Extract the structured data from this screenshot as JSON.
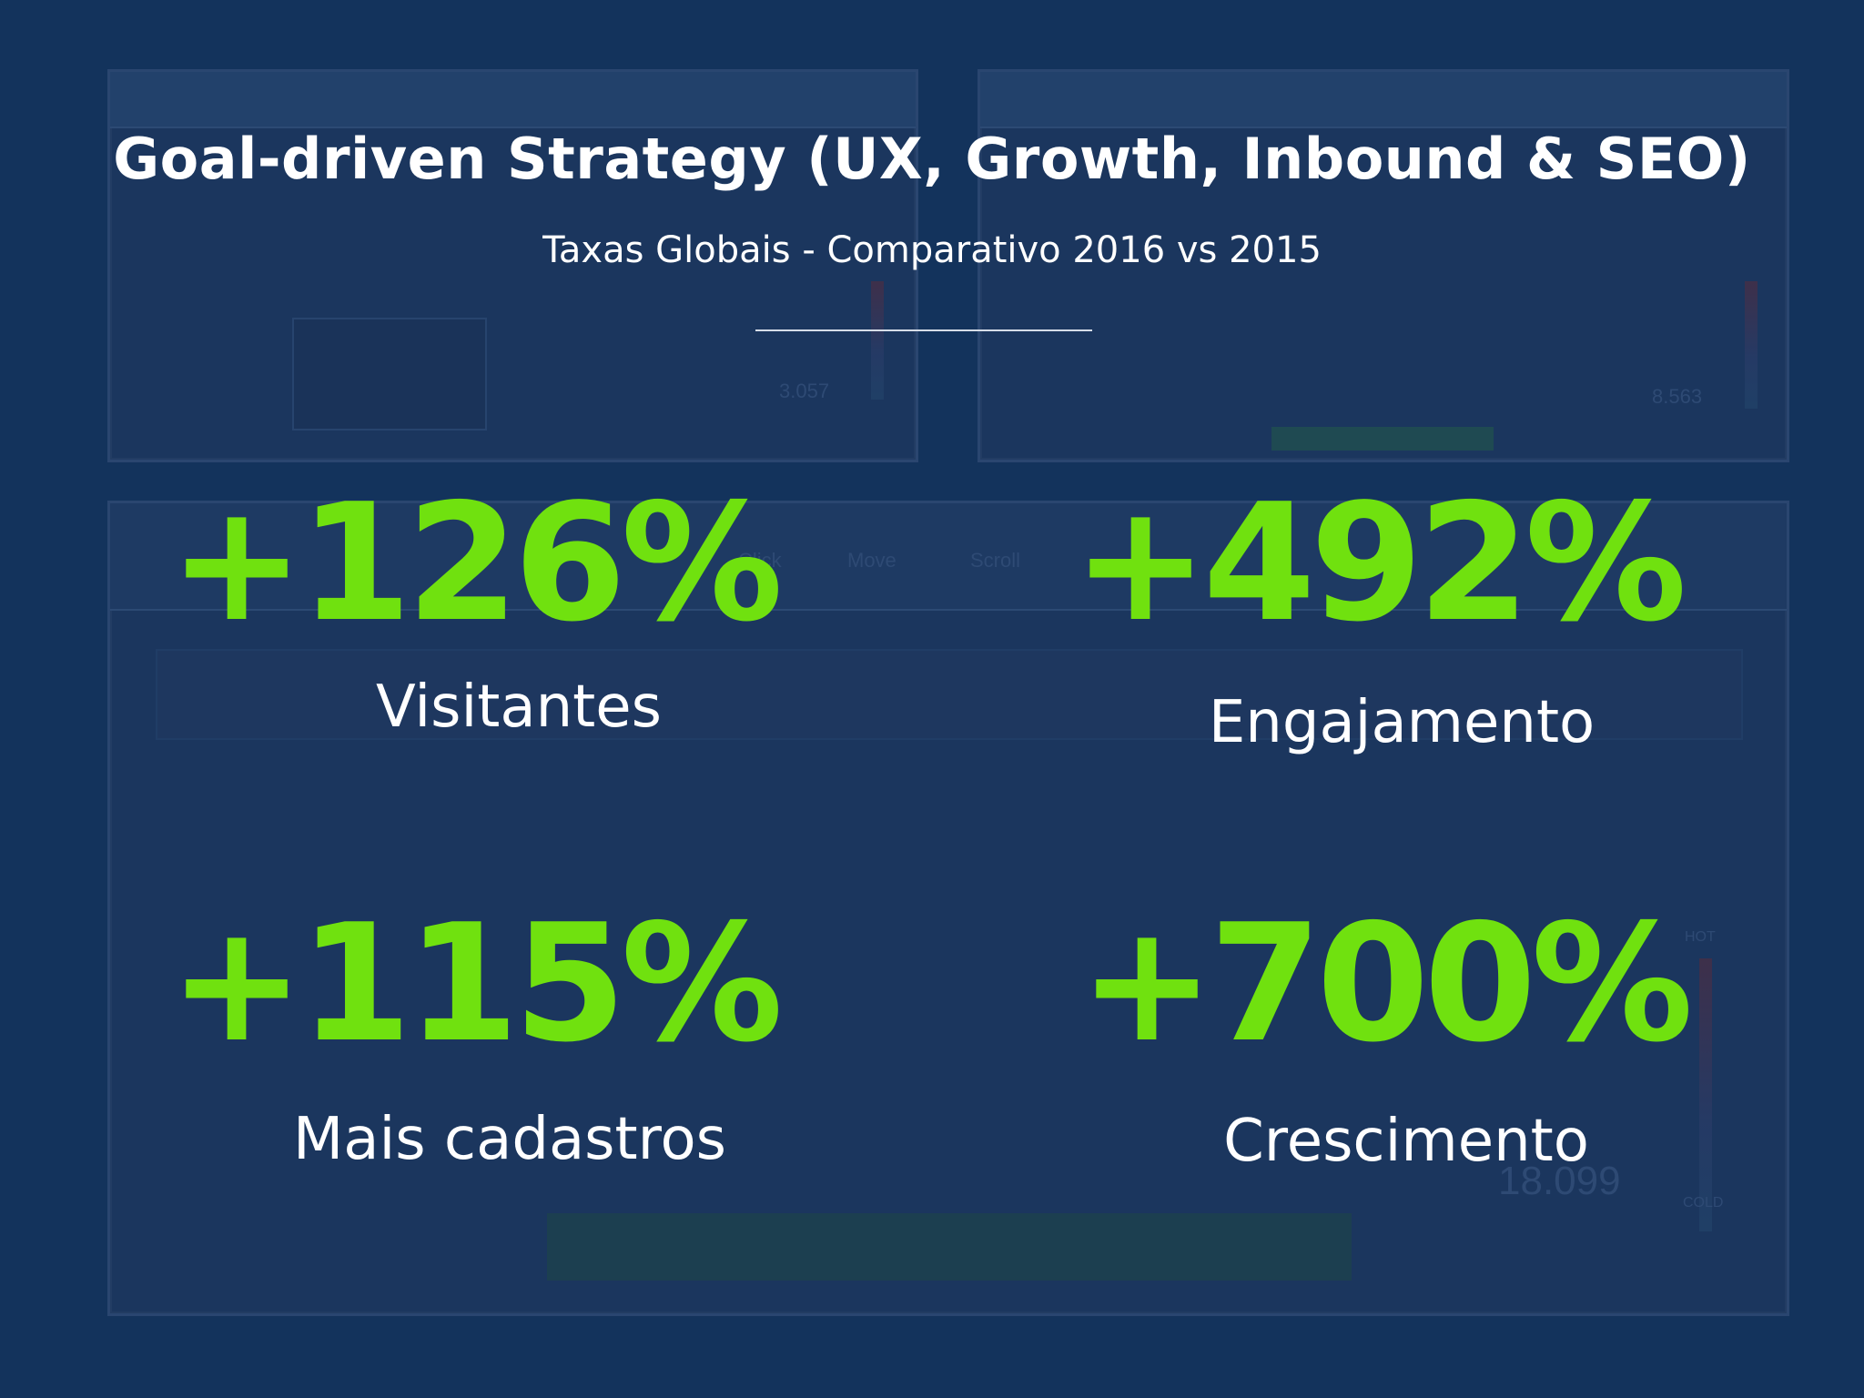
{
  "slide": {
    "title": "Goal-driven Strategy (UX, Growth, Inbound & SEO)",
    "subtitle": "Taxas Globais - Comparativo 2016 vs 2015"
  },
  "stats": [
    {
      "value": "+126%",
      "label": "Visitantes"
    },
    {
      "value": "+492%",
      "label": "Engajamento"
    },
    {
      "value": "+115%",
      "label": "Mais cadastros"
    },
    {
      "value": "+700%",
      "label": "Crescimento"
    }
  ],
  "background_screens": {
    "left_count": "3.057",
    "right_count": "8.563",
    "bottom_count": "18.099",
    "toolbar": [
      "Click",
      "Move",
      "Scroll"
    ],
    "hot_label": "HOT",
    "cold_label": "COLD"
  },
  "colors": {
    "background": "#13335c",
    "accent_green": "#70e10f",
    "text_white": "#ffffff"
  }
}
